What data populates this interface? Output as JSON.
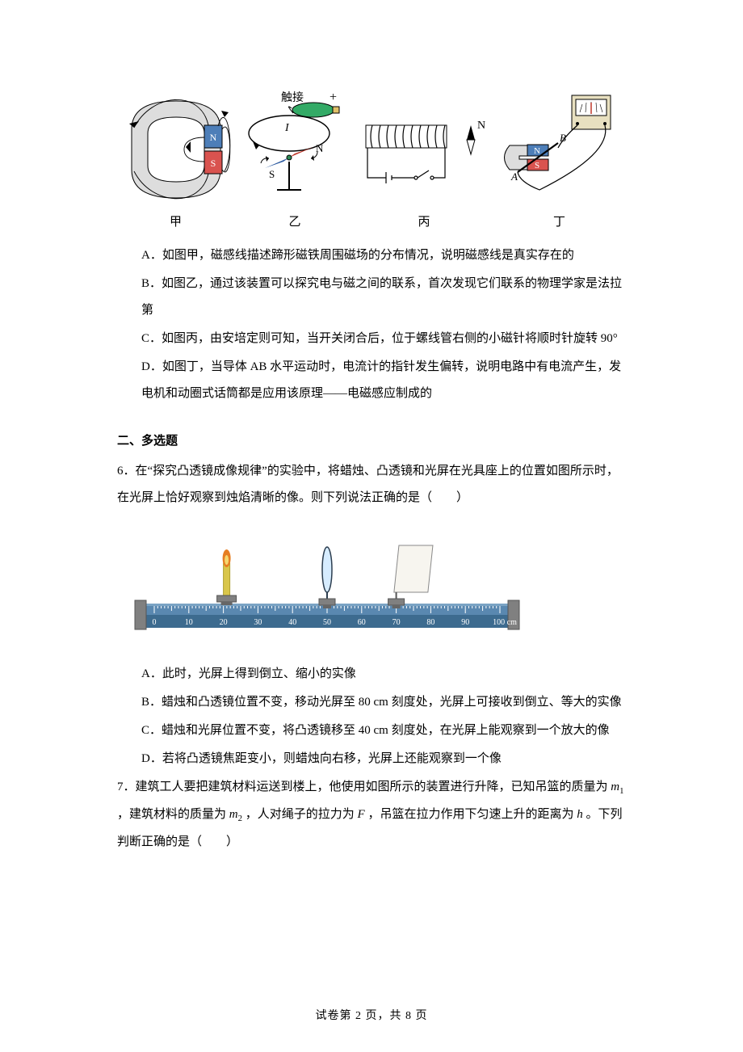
{
  "q5": {
    "figure_labels": [
      "甲",
      "乙",
      "丙",
      "丁"
    ],
    "svg": {
      "jia": {
        "bg": "#ffffff",
        "stroke": "#000000",
        "magnet_blue": "#4d7eb8",
        "magnet_red": "#d9534f",
        "label_N": "N",
        "label_S": "S"
      },
      "yi": {
        "stroke": "#000000",
        "compass_green": "#2e8b57",
        "compass_red": "#c0392b",
        "compass_blue": "#2c5aa0",
        "battery_green": "#3a6",
        "battery_yellow": "#e0c068",
        "label_touch": "触接",
        "label_plus": "+",
        "label_N": "N",
        "label_S": "S",
        "label_I": "I"
      },
      "bing": {
        "stroke": "#000000",
        "label_N": "N"
      },
      "ding": {
        "stroke": "#000000",
        "magnet_blue": "#4d7eb8",
        "magnet_red": "#d9534f",
        "meter_body": "#e8e0c0",
        "meter_face": "#fff",
        "label_N": "N",
        "label_S": "S",
        "label_A": "A",
        "label_B": "B"
      }
    },
    "options": {
      "A": "A．如图甲，磁感线描述蹄形磁铁周围磁场的分布情况，说明磁感线是真实存在的",
      "B": "B．如图乙，通过该装置可以探究电与磁之间的联系，首次发现它们联系的物理学家是法拉第",
      "C": "C．如图丙，由安培定则可知，当开关闭合后，位于螺线管右侧的小磁针将顺时针旋转 90°",
      "D": "D．如图丁，当导体 AB 水平运动时，电流计的指针发生偏转，说明电路中有电流产生，发电机和动圈式话筒都是应用该原理——电磁感应制成的"
    }
  },
  "section2_title": "二、多选题",
  "q6": {
    "stem1": "6．在“探究凸透镜成像规律”的实验中，将蜡烛、凸透镜和光屏在光具座上的位置如图所示时，在光屏上恰好观察到烛焰清晰的像。则下列说法正确的是（　　）",
    "optics": {
      "ticks": [
        "0",
        "10",
        "20",
        "30",
        "40",
        "50",
        "60",
        "70",
        "80",
        "90",
        "100 cm"
      ],
      "rail_color": "#3d6b8f",
      "rail_light": "#5a88b0",
      "base_gray": "#808080",
      "candle_body": "#d9c64a",
      "flame_outer": "#e67e22",
      "flame_inner": "#f5d76e",
      "lens_frame": "#2c3e50",
      "lens_fill": "#d6ecff",
      "screen_fill": "#f7f5ef",
      "screen_border": "#888"
    },
    "options": {
      "A": "A．此时，光屏上得到倒立、缩小的实像",
      "B": "B．蜡烛和凸透镜位置不变，移动光屏至 80 cm 刻度处，光屏上可接收到倒立、等大的实像",
      "C": "C．蜡烛和光屏位置不变，将凸透镜移至 40 cm 刻度处，在光屏上能观察到一个放大的像",
      "D": "D．若将凸透镜焦距变小，则蜡烛向右移，光屏上还能观察到一个像"
    }
  },
  "q7": {
    "stem_pre": "7．建筑工人要把建筑材料运送到楼上，他使用如图所示的装置进行升降，已知吊篮的质量为 ",
    "m1": "m",
    "m1sub": "1",
    "stem_mid1": " ，建筑材料的质量为 ",
    "m2": "m",
    "m2sub": "2",
    "stem_mid2": " ，人对绳子的拉力为 ",
    "F": "F",
    "stem_mid3": " ，吊篮在拉力作用下匀速上升的距离为 ",
    "h": "h",
    "stem_end": " 。下列判断正确的是（　　）"
  },
  "page_footer": "试卷第 2 页，共 8 页"
}
